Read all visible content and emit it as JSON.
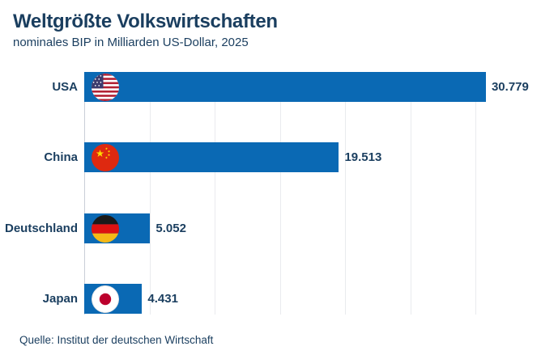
{
  "header": {
    "title": "Weltgrößte Volkswirtschaften",
    "subtitle": "nominales BIP in Milliarden US-Dollar, 2025"
  },
  "footer": {
    "source": "Quelle: Institut der deutschen Wirtschaft"
  },
  "colors": {
    "bar": "#0a69b4",
    "text": "#1a3e5f",
    "gridline": "#e9ebee",
    "axis": "#c9cfd8"
  },
  "chart_data": {
    "type": "bar",
    "orientation": "horizontal",
    "title": "Weltgrößte Volkswirtschaften",
    "subtitle": "nominales BIP in Milliarden US-Dollar, 2025",
    "categories": [
      "USA",
      "China",
      "Deutschland",
      "Japan"
    ],
    "values": [
      30779,
      19513,
      5052,
      4431
    ],
    "value_labels": [
      "30.779",
      "19.513",
      "5.052",
      "4.431"
    ],
    "unit": "Milliarden US-Dollar",
    "xlim": [
      0,
      35000
    ],
    "gridline_step": 5000,
    "grid": true,
    "legend": "none",
    "icons": [
      "usa-flag-icon",
      "china-flag-icon",
      "germany-flag-icon",
      "japan-flag-icon"
    ],
    "source": "Quelle: Institut der deutschen Wirtschaft"
  }
}
